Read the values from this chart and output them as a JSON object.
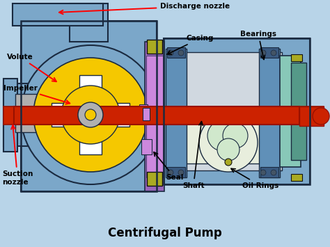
{
  "title": "Centrifugal Pump",
  "bg_color": "#b8d4e8",
  "labels": {
    "discharge_nozzle": "Discharge nozzle",
    "volute": "Volute",
    "impeller": "Impeller",
    "casing": "Casing",
    "bearings": "Bearings",
    "seal": "Seal",
    "shaft": "Shaft",
    "oil_rings": "Oil Rings",
    "suction_nozzle": "Suction\nnozzle"
  },
  "colors": {
    "blue_body": "#7ba7c9",
    "blue_mid": "#6090b8",
    "blue_dark": "#3a5a80",
    "yellow": "#f5c800",
    "yellow_dark": "#c8a000",
    "purple": "#9966bb",
    "purple_light": "#cc88dd",
    "red_shaft": "#cc2200",
    "red_dark": "#991100",
    "gray_suction": "#b0b0b0",
    "gray_light": "#d0d8e0",
    "olive": "#7a7a00",
    "olive_light": "#aaaa22",
    "teal": "#88c8b8",
    "teal_dark": "#559988",
    "white": "#ffffff",
    "cream": "#e8eedd",
    "outline": "#111111",
    "dark_blue_outline": "#1a2a40"
  }
}
